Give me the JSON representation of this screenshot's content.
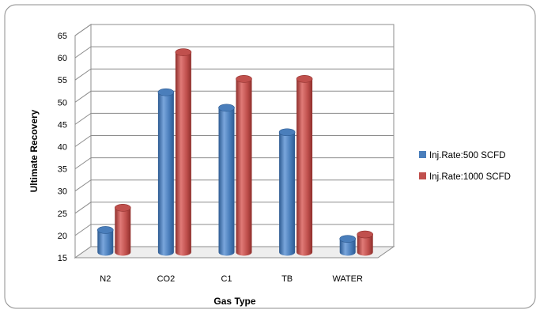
{
  "chart_data": {
    "type": "bar",
    "title": "",
    "xlabel": "Gas Type",
    "ylabel": "Ultimate Recovery",
    "categories": [
      "N2",
      "CO2",
      "C1",
      "TB",
      "WATER"
    ],
    "series": [
      {
        "name": "Inj.Rate:500 SCFD",
        "values": [
          20,
          51,
          47.5,
          42,
          18
        ],
        "color": "#4a7ebb"
      },
      {
        "name": "Inj.Rate:1000 SCFD",
        "values": [
          25,
          60,
          54,
          54,
          19
        ],
        "color": "#c0504d"
      }
    ],
    "ylim": [
      15,
      65
    ],
    "yticks": [
      15,
      20,
      25,
      30,
      35,
      40,
      45,
      50,
      55,
      60,
      65
    ],
    "grid": true,
    "legend": "right",
    "three_d": true
  }
}
